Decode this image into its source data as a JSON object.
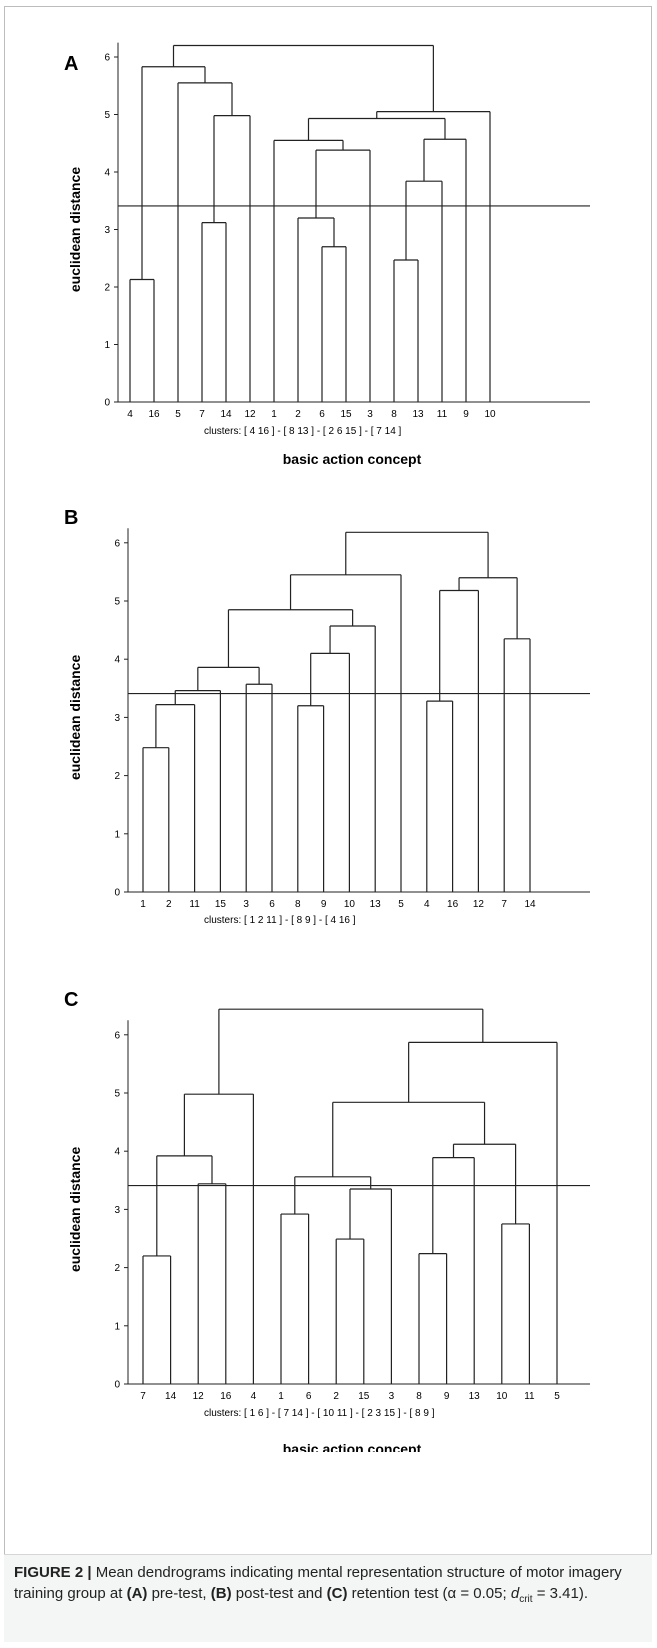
{
  "figure": {
    "caption_label": "FIGURE 2 |",
    "caption_parts": [
      {
        "t": "Mean dendrograms indicating mental representation structure of motor imagery training group at ",
        "b": false
      },
      {
        "t": "(A)",
        "b": true
      },
      {
        "t": " pre-test, ",
        "b": false
      },
      {
        "t": "(B)",
        "b": true
      },
      {
        "t": " post-test and ",
        "b": false
      },
      {
        "t": "(C)",
        "b": true
      },
      {
        "t": " retention test (α = 0.05; ",
        "b": false
      }
    ],
    "caption_dcrit_d": "d",
    "caption_dcrit_sub": "crit",
    "caption_end": " = 3.41)."
  },
  "chart_data": [
    {
      "type": "dendrogram",
      "panel": "A",
      "ylabel": "euclidean distance",
      "xlabel": "basic action concept",
      "ylim": [
        0,
        6
      ],
      "yticks": [
        0,
        1,
        2,
        3,
        4,
        5,
        6
      ],
      "critical_distance": 3.41,
      "leaves": [
        "4",
        "16",
        "5",
        "7",
        "14",
        "12",
        "1",
        "2",
        "6",
        "15",
        "3",
        "8",
        "13",
        "11",
        "9",
        "10"
      ],
      "clusters_text": "clusters: [ 4  16 ]   -   [ 8  13 ]   -   [ 2  6  15 ]   -   [ 7  14 ]",
      "merges": [
        {
          "a": "4",
          "b": "16",
          "h": 2.13
        },
        {
          "a": "7",
          "b": "14",
          "h": 3.12
        },
        {
          "a": "m1",
          "b": "12",
          "h": 4.98
        },
        {
          "a": "5",
          "b": "m2",
          "h": 5.55
        },
        {
          "a": "m0",
          "b": "m3",
          "h": 5.83
        },
        {
          "a": "6",
          "b": "15",
          "h": 2.7
        },
        {
          "a": "2",
          "b": "m5",
          "h": 3.2
        },
        {
          "a": "m6",
          "b": "3",
          "h": 4.38
        },
        {
          "a": "1",
          "b": "m7",
          "h": 4.55
        },
        {
          "a": "8",
          "b": "13",
          "h": 2.47
        },
        {
          "a": "m9",
          "b": "11",
          "h": 3.84
        },
        {
          "a": "m10",
          "b": "9",
          "h": 4.57
        },
        {
          "a": "m8",
          "b": "m11",
          "h": 4.93
        },
        {
          "a": "m12",
          "b": "10",
          "h": 5.05
        },
        {
          "a": "m4",
          "b": "m13",
          "h": 6.2
        }
      ]
    },
    {
      "type": "dendrogram",
      "panel": "B",
      "ylabel": "euclidean distance",
      "xlabel": "basic action concept",
      "ylim": [
        0,
        6
      ],
      "yticks": [
        0,
        1,
        2,
        3,
        4,
        5,
        6
      ],
      "critical_distance": 3.41,
      "leaves": [
        "1",
        "2",
        "11",
        "15",
        "3",
        "6",
        "8",
        "9",
        "10",
        "13",
        "5",
        "4",
        "16",
        "12",
        "7",
        "14"
      ],
      "clusters_text": "clusters: [ 1   2  11 ]   -   [ 8  9 ]   -   [ 4  16 ]",
      "merges": [
        {
          "a": "1",
          "b": "2",
          "h": 2.48
        },
        {
          "a": "m0",
          "b": "11",
          "h": 3.22
        },
        {
          "a": "m1",
          "b": "15",
          "h": 3.46
        },
        {
          "a": "3",
          "b": "6",
          "h": 3.57
        },
        {
          "a": "m2",
          "b": "m3",
          "h": 3.86
        },
        {
          "a": "8",
          "b": "9",
          "h": 3.2
        },
        {
          "a": "m5",
          "b": "10",
          "h": 4.1
        },
        {
          "a": "m6",
          "b": "13",
          "h": 4.57
        },
        {
          "a": "m4",
          "b": "m7",
          "h": 4.85
        },
        {
          "a": "m8",
          "b": "5",
          "h": 5.45
        },
        {
          "a": "4",
          "b": "16",
          "h": 3.28
        },
        {
          "a": "m10",
          "b": "12",
          "h": 5.18
        },
        {
          "a": "7",
          "b": "14",
          "h": 4.35
        },
        {
          "a": "m11",
          "b": "m12",
          "h": 5.4
        },
        {
          "a": "m9",
          "b": "m13",
          "h": 6.18
        }
      ]
    },
    {
      "type": "dendrogram",
      "panel": "C",
      "ylabel": "euclidean distance",
      "xlabel": "basic action concept",
      "ylim": [
        0,
        6
      ],
      "yticks": [
        0,
        1,
        2,
        3,
        4,
        5,
        6
      ],
      "critical_distance": 3.41,
      "leaves": [
        "7",
        "14",
        "12",
        "16",
        "4",
        "1",
        "6",
        "2",
        "15",
        "3",
        "8",
        "9",
        "13",
        "10",
        "11",
        "5"
      ],
      "clusters_text": "clusters: [ 1  6 ]   -   [ 7  14 ]   -   [ 10  11 ]   -   [ 2  3  15 ]   -   [ 8  9 ]",
      "merges": [
        {
          "a": "7",
          "b": "14",
          "h": 2.2
        },
        {
          "a": "12",
          "b": "16",
          "h": 3.44
        },
        {
          "a": "m0",
          "b": "m1",
          "h": 3.92
        },
        {
          "a": "m2",
          "b": "4",
          "h": 4.98
        },
        {
          "a": "1",
          "b": "6",
          "h": 2.92
        },
        {
          "a": "2",
          "b": "15",
          "h": 2.49
        },
        {
          "a": "m5",
          "b": "3",
          "h": 3.35
        },
        {
          "a": "m4",
          "b": "m6",
          "h": 3.56
        },
        {
          "a": "8",
          "b": "9",
          "h": 2.24
        },
        {
          "a": "m8",
          "b": "13",
          "h": 3.89
        },
        {
          "a": "10",
          "b": "11",
          "h": 2.75
        },
        {
          "a": "m9",
          "b": "m10",
          "h": 4.12
        },
        {
          "a": "m7",
          "b": "m11",
          "h": 4.84
        },
        {
          "a": "m12",
          "b": "5",
          "h": 5.87
        },
        {
          "a": "m3",
          "b": "m13",
          "h": 6.44
        }
      ]
    }
  ]
}
